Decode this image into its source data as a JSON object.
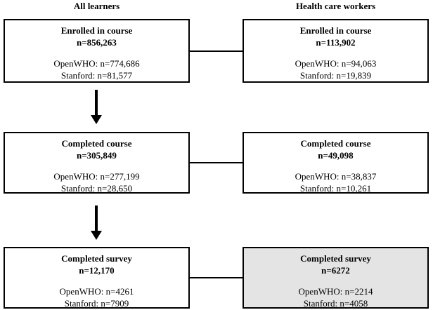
{
  "diagram": {
    "title": "Course participation flow diagram",
    "colors": {
      "border": "#000000",
      "highlight_fill": "#e4e4e4",
      "background": "#ffffff",
      "text": "#000000"
    },
    "columns": [
      {
        "header": "All learners",
        "boxes": [
          {
            "title": "Enrolled in course",
            "n": "n=856,263",
            "openwho": "OpenWHO: n=774,686",
            "stanford": "Stanford: n=81,577"
          },
          {
            "title": "Completed course",
            "n": "n=305,849",
            "openwho": "OpenWHO: n=277,199",
            "stanford": "Stanford: n=28,650"
          },
          {
            "title": "Completed survey",
            "n": "n=12,170",
            "openwho": "OpenWHO: n=4261",
            "stanford": "Stanford: n=7909"
          }
        ]
      },
      {
        "header": "Health care workers",
        "boxes": [
          {
            "title": "Enrolled in course",
            "n": "n=113,902",
            "openwho": "OpenWHO: n=94,063",
            "stanford": "Stanford: n=19,839"
          },
          {
            "title": "Completed course",
            "n": "n=49,098",
            "openwho": "OpenWHO: n=38,837",
            "stanford": "Stanford: n=10,261"
          },
          {
            "title": "Completed survey",
            "n": "n=6272",
            "openwho": "OpenWHO: n=2214",
            "stanford": "Stanford: n=4058",
            "highlighted": true
          }
        ]
      }
    ]
  }
}
